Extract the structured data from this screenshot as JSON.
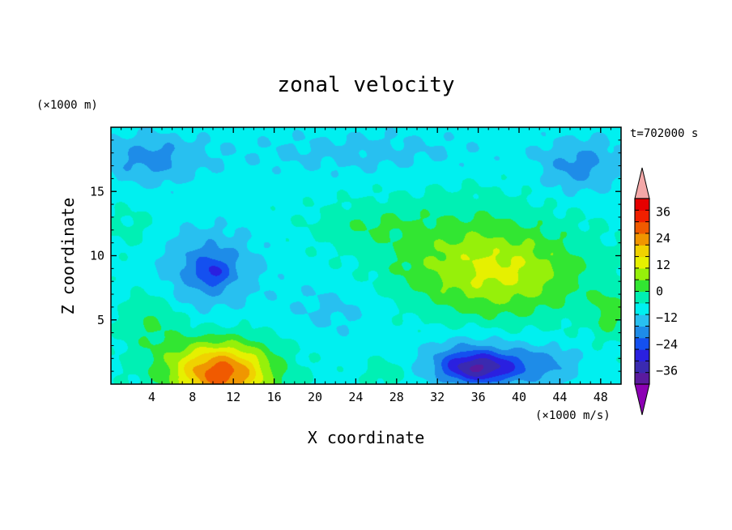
{
  "chart_data": {
    "type": "heatmap",
    "title": "zonal velocity",
    "xlabel": "X coordinate",
    "ylabel": "Z coordinate",
    "y_unit": "(×1000 m)",
    "x_unit": "(×1000 m/s)",
    "time_label": "t=702000 s",
    "xlim": [
      0,
      50
    ],
    "ylim": [
      0,
      20
    ],
    "x_ticks": [
      4,
      8,
      12,
      16,
      20,
      24,
      28,
      32,
      36,
      40,
      44,
      48
    ],
    "y_ticks": [
      5,
      10,
      15
    ],
    "colorbar": {
      "levels": [
        -42,
        -36,
        -30,
        -24,
        -18,
        -12,
        -6,
        0,
        6,
        12,
        18,
        24,
        30,
        36,
        42
      ],
      "labels": [
        36,
        24,
        12,
        0,
        -12,
        -24,
        -36
      ],
      "colors": [
        "#5a1a9e",
        "#3a2ab0",
        "#2a20e0",
        "#1450f0",
        "#1e8ce8",
        "#28c0f0",
        "#00f0f0",
        "#00f0b4",
        "#32e632",
        "#96f00a",
        "#e6f000",
        "#f0d200",
        "#f09600",
        "#f05a00",
        "#f02000",
        "#e60000"
      ],
      "under_color": "#8c00b4",
      "over_color": "#f4a8a8"
    },
    "features": [
      {
        "x": 11,
        "z": 0.5,
        "value": 30,
        "sx": 4.5,
        "sz": 2.4
      },
      {
        "x": 10,
        "z": 1.5,
        "value": 14,
        "sx": 6,
        "sz": 2.2
      },
      {
        "x": 38.5,
        "z": 8.5,
        "value": 16,
        "sx": 8,
        "sz": 3.4
      },
      {
        "x": 34,
        "z": 10.5,
        "value": 8,
        "sx": 10,
        "sz": 4.5
      },
      {
        "x": 9.5,
        "z": 9,
        "value": -14,
        "sx": 5,
        "sz": 3
      },
      {
        "x": 10,
        "z": 8.7,
        "value": -10,
        "sx": 1.5,
        "sz": 1.1
      },
      {
        "x": 36,
        "z": 1.2,
        "value": -24,
        "sx": 3.5,
        "sz": 1.2
      },
      {
        "x": 35,
        "z": 2,
        "value": -12,
        "sx": 5,
        "sz": 2
      },
      {
        "x": 42,
        "z": 1.5,
        "value": -12,
        "sx": 4,
        "sz": 1.6
      },
      {
        "x": 22,
        "z": 6,
        "value": -6,
        "sx": 5,
        "sz": 2.5
      },
      {
        "x": 4,
        "z": 17.5,
        "value": -12,
        "sx": 5,
        "sz": 2
      },
      {
        "x": 46,
        "z": 17,
        "value": -12,
        "sx": 4,
        "sz": 2.2
      },
      {
        "x": 25,
        "z": 18,
        "value": -6,
        "sx": 14,
        "sz": 2
      },
      {
        "x": 25,
        "z": 12.5,
        "value": 5,
        "sx": 5,
        "sz": 1.5
      },
      {
        "x": 4,
        "z": 5,
        "value": 8,
        "sx": 3,
        "sz": 2.5
      },
      {
        "x": 49,
        "z": 5.5,
        "value": 10,
        "sx": 2,
        "sz": 2
      },
      {
        "x": 27,
        "z": 1,
        "value": 6,
        "sx": 2,
        "sz": 1.2
      },
      {
        "x": 2,
        "z": 12,
        "value": 4,
        "sx": 3,
        "sz": 2
      }
    ]
  }
}
